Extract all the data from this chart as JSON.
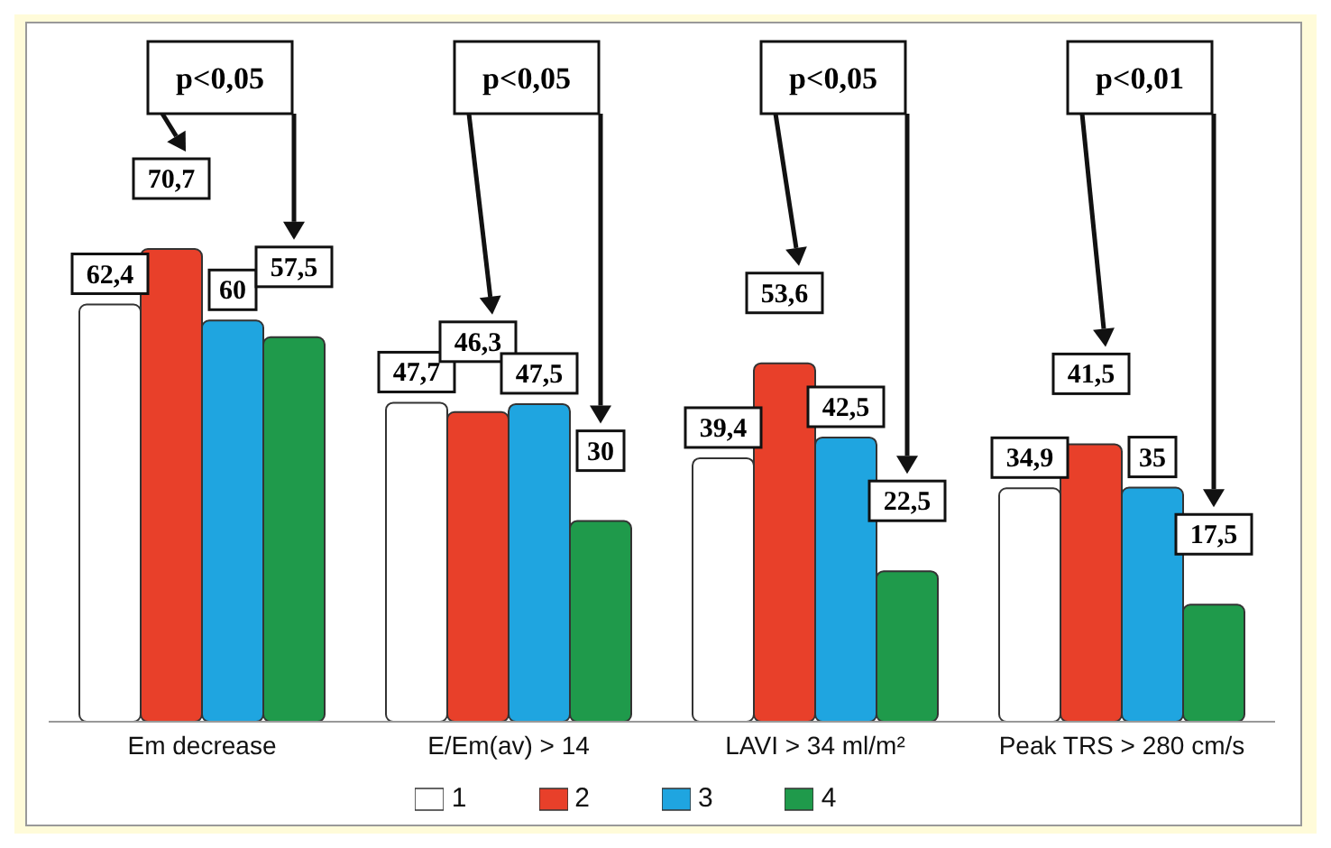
{
  "chart_data": {
    "type": "bar",
    "categories": [
      "Em decrease",
      "E/Em(av) > 14",
      "LAVI > 34 ml/m²",
      "Peak TRS > 280 cm/s"
    ],
    "series": [
      {
        "name": "1",
        "color": "#ffffff",
        "values": [
          62.4,
          47.7,
          39.4,
          34.9
        ],
        "value_labels": [
          "62,4",
          "47,7",
          "39,4",
          "34,9"
        ]
      },
      {
        "name": "2",
        "color": "#e8402a",
        "values": [
          70.7,
          46.3,
          53.6,
          41.5
        ],
        "value_labels": [
          "70,7",
          "46,3",
          "53,6",
          "41,5"
        ]
      },
      {
        "name": "3",
        "color": "#1fa5e0",
        "values": [
          60,
          47.5,
          42.5,
          35
        ],
        "value_labels": [
          "60",
          "47,5",
          "42,5",
          "35"
        ]
      },
      {
        "name": "4",
        "color": "#1f9a4b",
        "values": [
          57.5,
          30,
          22.5,
          17.5
        ],
        "value_labels": [
          "57,5",
          "30",
          "22,5",
          "17,5"
        ]
      }
    ],
    "annotations": [
      "p<0,05",
      "p<0,05",
      "p<0,05",
      "p<0,01"
    ],
    "legend": "bottom",
    "grid": false
  }
}
